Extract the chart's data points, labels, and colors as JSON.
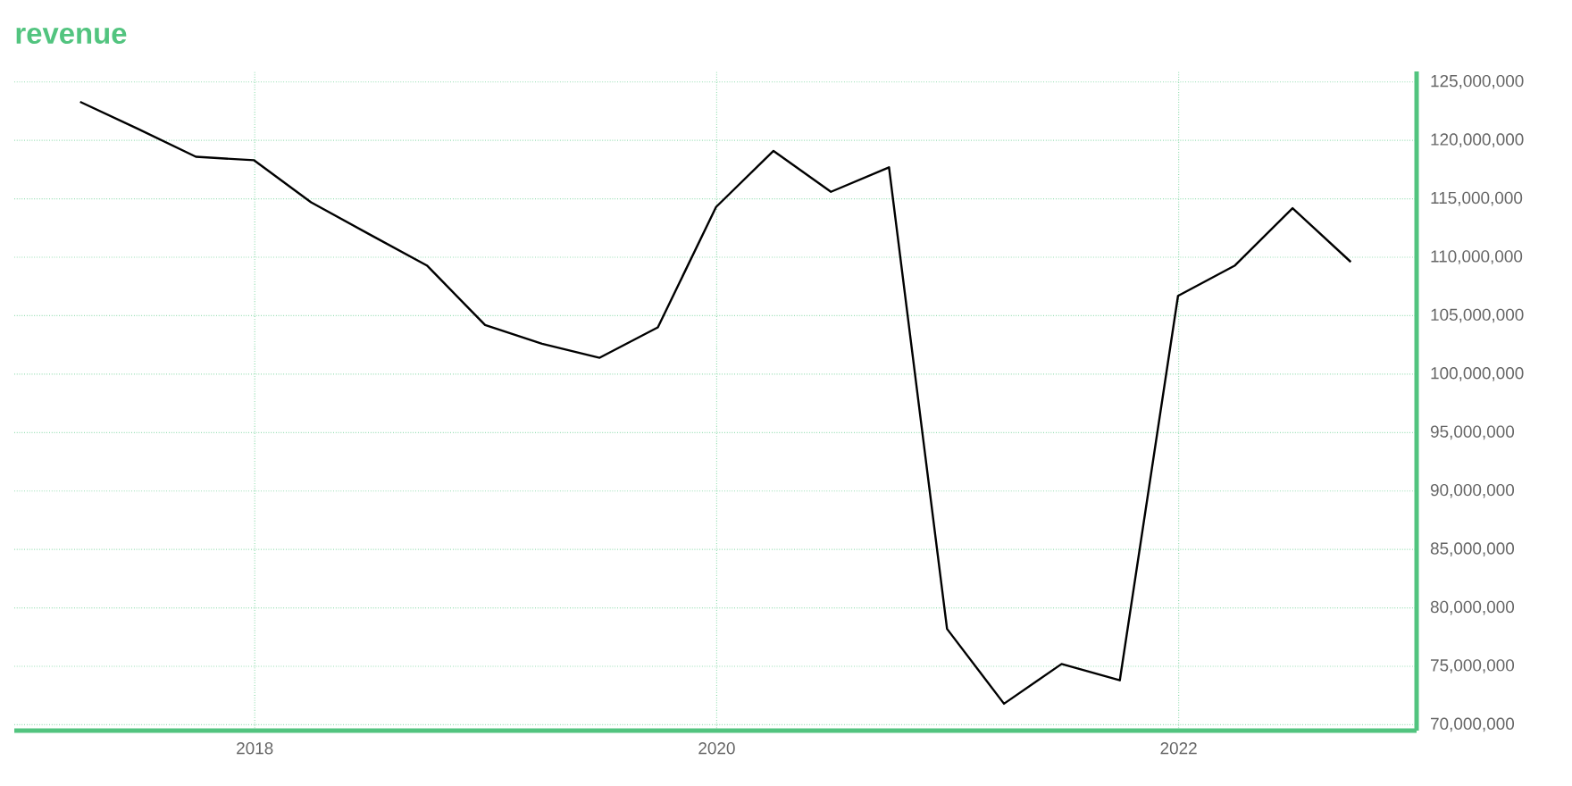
{
  "chart_data": {
    "type": "line",
    "title": "revenue",
    "x": [
      "2017-03-31",
      "2017-06-30",
      "2017-09-30",
      "2017-12-31",
      "2018-03-31",
      "2018-06-30",
      "2018-09-30",
      "2018-12-31",
      "2019-03-31",
      "2019-06-30",
      "2019-09-30",
      "2019-12-31",
      "2020-03-31",
      "2020-06-30",
      "2020-09-30",
      "2020-12-31",
      "2021-03-31",
      "2021-06-30",
      "2021-09-30",
      "2021-12-31",
      "2022-03-31",
      "2022-06-30",
      "2022-09-30"
    ],
    "series": [
      {
        "color": "#000000",
        "values": [
          123300000,
          121000000,
          118600000,
          118300000,
          114700000,
          112000000,
          109300000,
          104200000,
          102600000,
          101400000,
          104000000,
          114300000,
          119100000,
          115600000,
          117700000,
          78200000,
          71800000,
          75200000,
          73800000,
          106700000,
          109300000,
          114200000,
          109600000
        ]
      }
    ],
    "xlim": [
      "2016-12-17",
      "2023-01-12"
    ],
    "xticks": [
      {
        "value": "2018-01-01",
        "label": "2018"
      },
      {
        "value": "2020-01-01",
        "label": "2020"
      },
      {
        "value": "2022-01-01",
        "label": "2022"
      }
    ],
    "ylim": [
      69500000,
      125900000
    ],
    "yticks": [
      {
        "value": 70000000,
        "label": "70,000,000"
      },
      {
        "value": 75000000,
        "label": "75,000,000"
      },
      {
        "value": 80000000,
        "label": "80,000,000"
      },
      {
        "value": 85000000,
        "label": "85,000,000"
      },
      {
        "value": 90000000,
        "label": "90,000,000"
      },
      {
        "value": 95000000,
        "label": "95,000,000"
      },
      {
        "value": 100000000,
        "label": "100,000,000"
      },
      {
        "value": 105000000,
        "label": "105,000,000"
      },
      {
        "value": 110000000,
        "label": "110,000,000"
      },
      {
        "value": 115000000,
        "label": "115,000,000"
      },
      {
        "value": 120000000,
        "label": "120,000,000"
      },
      {
        "value": 125000000,
        "label": "125,000,000"
      }
    ],
    "grid": true,
    "marker": "none",
    "line_style": "solid"
  }
}
